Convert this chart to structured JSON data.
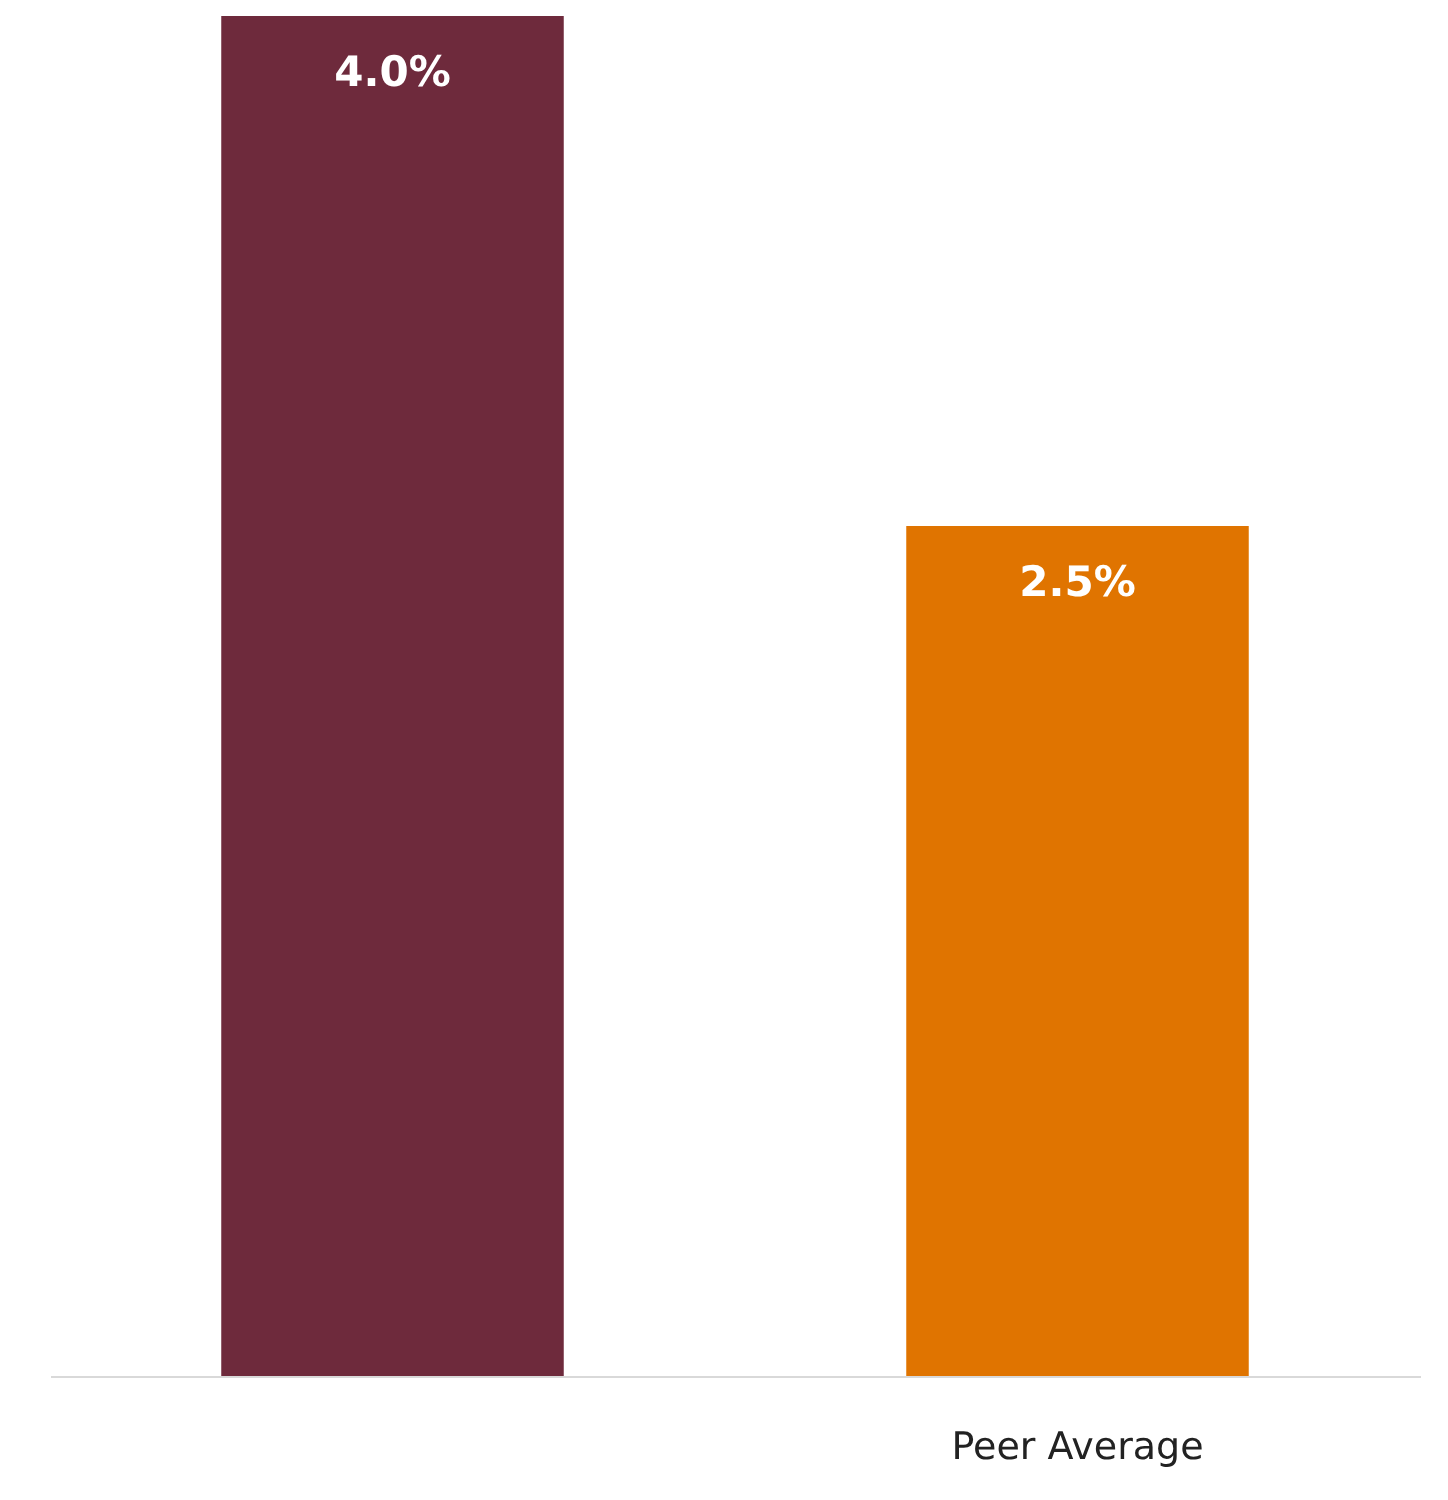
{
  "chart_data": {
    "type": "bar",
    "categories": [
      null,
      "Peer Average"
    ],
    "values": [
      4.0,
      2.5
    ],
    "colors": [
      "#6e2a3c",
      "#e07400"
    ],
    "value_labels": [
      "4.0%",
      "2.5%"
    ]
  }
}
